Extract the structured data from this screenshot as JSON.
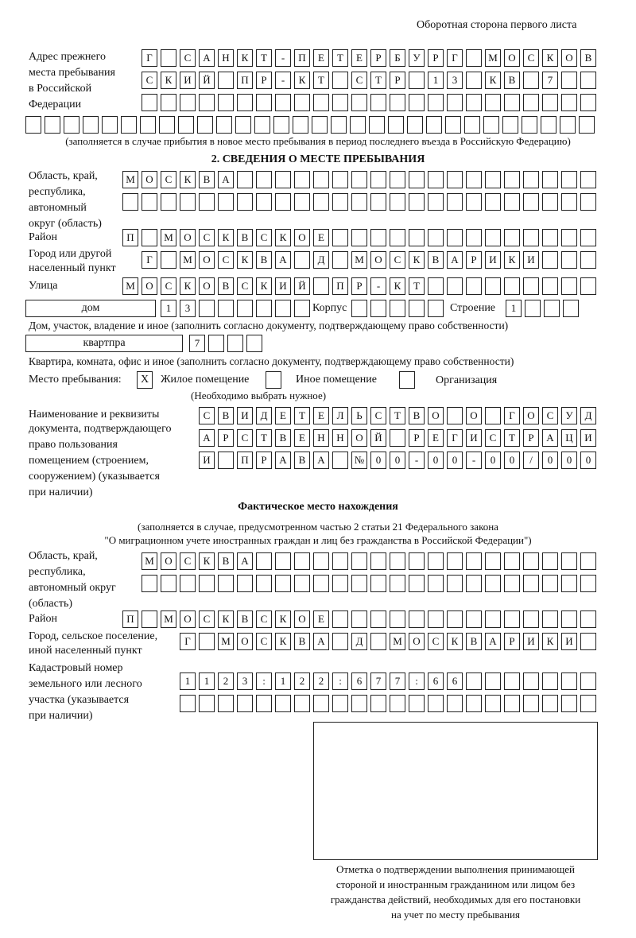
{
  "header": {
    "page_side": "Оборотная сторона первого листа"
  },
  "previous_address": {
    "label_lines": [
      "Адрес прежнего",
      "места пребывания",
      "в Российской",
      "Федерации"
    ],
    "rows": [
      "Г САНКТ-ПЕТЕРБУРГ МОСКОВ",
      "СКИЙ ПР-КТ СТР 13 КВ 7  ",
      "",
      ""
    ],
    "note": "(заполняется в случае прибытия в новое место пребывания в период последнего въезда в Российскую Федерацию)"
  },
  "section2": {
    "title": "2. СВЕДЕНИЯ О МЕСТЕ ПРЕБЫВАНИЯ",
    "region_label_lines": [
      "Область, край,",
      "республика,",
      "автономный",
      "округ (область)"
    ],
    "region_rows": [
      "МОСКВА",
      ""
    ],
    "district_label": "Район",
    "district_row": "П МОСКВСКОЕ",
    "city_label_lines": [
      "Город или другой",
      "населенный пункт"
    ],
    "city_row": "Г МОСКВА Д МОСКВАРИКИ",
    "street_label": "Улица",
    "street_row": "МОСКОВСКИЙ ПР-КТ",
    "house_type": "дом",
    "house_number": "13",
    "building_label": "Корпус",
    "building_value": "",
    "structure_label": "Строение",
    "structure_value": "1",
    "house_caption": "Дом, участок, владение и иное (заполнить согласно документу, подтверждающему право собственности)",
    "apartment_type": "квартпра",
    "apartment_number": "7",
    "apartment_caption": "Квартира, комната, офис и иное (заполнить согласно документу, подтверждающему право собственности)",
    "stay_place_label": "Место пребывания:",
    "stay_options": [
      {
        "label": "Жилое помещение",
        "mark": "X"
      },
      {
        "label": "Иное помещение",
        "mark": ""
      },
      {
        "label": "Организация",
        "mark": ""
      }
    ],
    "stay_note": "(Необходимо выбрать нужное)",
    "document_label_lines": [
      "Наименование и реквизиты",
      "документа, подтверждающего",
      "право пользования",
      "помещением (строением,",
      "сооружением) (указывается",
      "при наличии)"
    ],
    "document_rows": [
      "СВИДЕТЕЛЬСТВО О ГОСУД",
      "АРСТВЕННОЙ РЕГИСТРАЦИ",
      "И ПРАВА №00-00-00/000"
    ]
  },
  "actual_location": {
    "title": "Фактическое место нахождения",
    "note_lines": [
      "(заполняется в случае, предусмотренном частью 2 статьи 21 Федерального закона",
      "\"О миграционном учете иностранных граждан и лиц без гражданства в Российской Федерации\")"
    ],
    "region_label_lines": [
      "Область, край,",
      "республика,",
      "автономный округ",
      "(область)"
    ],
    "region_rows": [
      "МОСКВА",
      ""
    ],
    "district_label": "Район",
    "district_row": "П МОСКВСКОЕ",
    "city_label_lines": [
      "Город, сельское поселение,",
      "иной населенный пункт"
    ],
    "city_row": "Г МОСКВА Д МОСКВАРИКИ",
    "cadastral_label_lines": [
      "Кадастровый номер",
      "земельного или лесного",
      "участка (указывается",
      "при наличии)"
    ],
    "cadastral_rows": [
      "1123:122:677:66",
      ""
    ]
  },
  "confirmation": {
    "caption_lines": [
      "Отметка о подтверждении выполнения принимающей",
      "стороной и иностранным гражданином или лицом без",
      "гражданства действий, необходимых для его постановки",
      "на учет по месту пребывания"
    ]
  }
}
